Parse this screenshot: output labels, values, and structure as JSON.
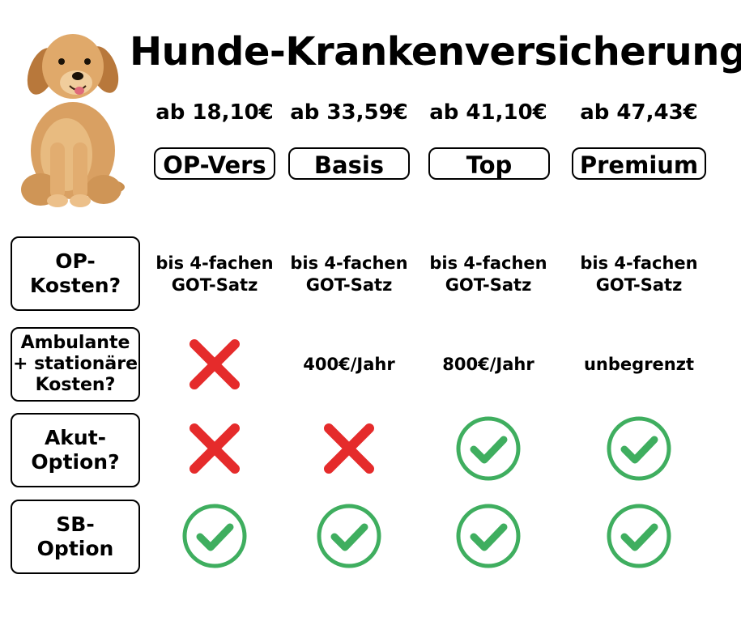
{
  "title": "Hunde-Krankenversicherung",
  "colors": {
    "check": "#3fae5f",
    "cross": "#e52b2b",
    "border": "#000000"
  },
  "icons": {
    "dog": "puppy-illustration",
    "yes": "green-check-circle-icon",
    "no": "red-x-icon"
  },
  "plans": [
    {
      "price": "ab 18,10€",
      "name": "OP-Vers"
    },
    {
      "price": "ab 33,59€",
      "name": "Basis"
    },
    {
      "price": "ab 41,10€",
      "name": "Top"
    },
    {
      "price": "ab 47,43€",
      "name": "Premium"
    }
  ],
  "rows": [
    {
      "label": "OP-\nKosten?",
      "values": [
        "bis 4-fachen\nGOT-Satz",
        "bis 4-fachen\nGOT-Satz",
        "bis 4-fachen\nGOT-Satz",
        "bis 4-fachen\nGOT-Satz"
      ]
    },
    {
      "label": "Ambulante\n+ stationäre\nKosten?",
      "values": [
        "no",
        "400€/Jahr",
        "800€/Jahr",
        "unbegrenzt"
      ]
    },
    {
      "label": "Akut-\nOption?",
      "values": [
        "no",
        "no",
        "yes",
        "yes"
      ]
    },
    {
      "label": "SB-\nOption",
      "values": [
        "yes",
        "yes",
        "yes",
        "yes"
      ]
    }
  ]
}
